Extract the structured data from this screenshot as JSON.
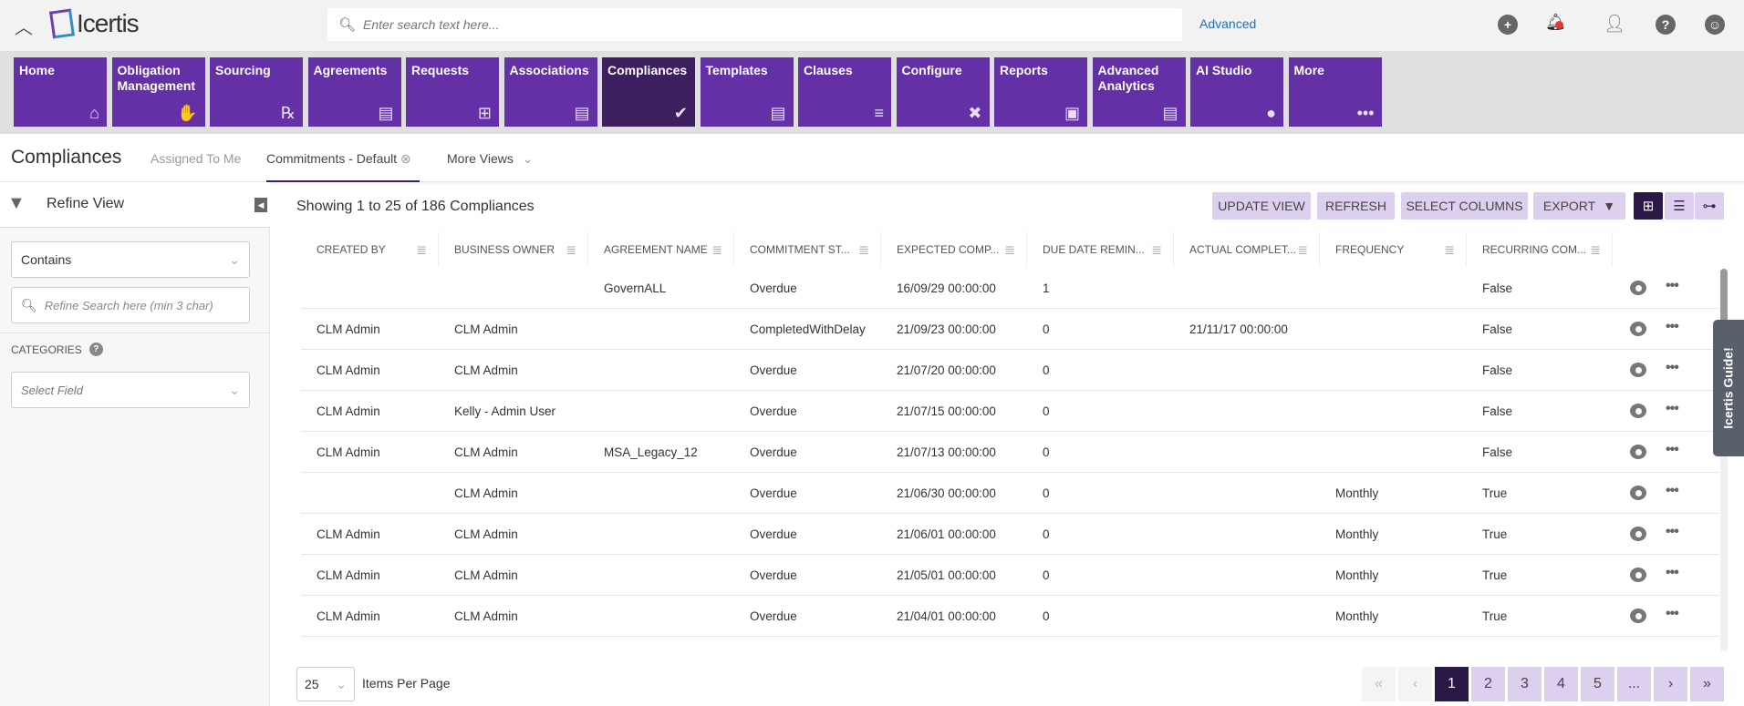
{
  "header": {
    "logo": "Icertis",
    "search_placeholder": "Enter search text here...",
    "advanced": "Advanced",
    "icons": [
      "plus-circle-icon",
      "bell-icon",
      "user-clock-icon",
      "help-icon",
      "user-icon"
    ],
    "notification_color": "#e53935"
  },
  "nav": {
    "tiles": [
      {
        "label": "Home",
        "icon": "home-icon",
        "glyph": "⌂"
      },
      {
        "label": "Obligation Management",
        "icon": "handshake-icon",
        "glyph": "✋"
      },
      {
        "label": "Sourcing",
        "icon": "rx-document-icon",
        "glyph": "℞"
      },
      {
        "label": "Agreements",
        "icon": "pdf-document-icon",
        "glyph": "▤"
      },
      {
        "label": "Requests",
        "icon": "document-plus-icon",
        "glyph": "⊞"
      },
      {
        "label": "Associations",
        "icon": "document-lines-icon",
        "glyph": "▤"
      },
      {
        "label": "Compliances",
        "icon": "double-check-icon",
        "glyph": "✔",
        "active": true
      },
      {
        "label": "Templates",
        "icon": "document-list-icon",
        "glyph": "▤"
      },
      {
        "label": "Clauses",
        "icon": "align-left-icon",
        "glyph": "≡"
      },
      {
        "label": "Configure",
        "icon": "tools-icon",
        "glyph": "✖"
      },
      {
        "label": "Reports",
        "icon": "clipboard-icon",
        "glyph": "▣"
      },
      {
        "label": "Advanced Analytics",
        "icon": "analytics-document-icon",
        "glyph": "▤"
      },
      {
        "label": "AI Studio",
        "icon": "lightbulb-icon",
        "glyph": "●"
      },
      {
        "label": "More",
        "icon": "ellipsis-icon",
        "glyph": "•••"
      }
    ],
    "active_color": "#3d1f5f",
    "tile_color": "#6330a5"
  },
  "subheader": {
    "title": "Compliances",
    "views": [
      "Assigned To Me",
      "Commitments - Default",
      "More Views"
    ]
  },
  "sidebar": {
    "title": "Refine View",
    "operator": "Contains",
    "search_placeholder": "Refine Search here (min 3 char)",
    "categories_label": "CATEGORIES",
    "field_placeholder": "Select Field"
  },
  "toolbar": {
    "summary": "Showing 1 to 25 of 186 Compliances",
    "update_view": "UPDATE VIEW",
    "refresh": "REFRESH",
    "select_columns": "SELECT COLUMNS",
    "export": "EXPORT"
  },
  "table": {
    "columns": [
      "CREATED BY",
      "BUSINESS OWNER",
      "AGREEMENT NAME",
      "COMMITMENT ST...",
      "EXPECTED COMP...",
      "DUE DATE REMIN...",
      "ACTUAL COMPLET...",
      "FREQUENCY",
      "RECURRING COM..."
    ],
    "rows": [
      [
        "",
        "",
        "GovernALL",
        "Overdue",
        "16/09/29 00:00:00",
        "1",
        "",
        "",
        "False"
      ],
      [
        "CLM Admin",
        "CLM Admin",
        "",
        "CompletedWithDelay",
        "21/09/23 00:00:00",
        "0",
        "21/11/17 00:00:00",
        "",
        "False"
      ],
      [
        "CLM Admin",
        "CLM Admin",
        "",
        "Overdue",
        "21/07/20 00:00:00",
        "0",
        "",
        "",
        "False"
      ],
      [
        "CLM Admin",
        "Kelly - Admin User",
        "",
        "Overdue",
        "21/07/15 00:00:00",
        "0",
        "",
        "",
        "False"
      ],
      [
        "CLM Admin",
        "CLM Admin",
        "MSA_Legacy_12",
        "Overdue",
        "21/07/13 00:00:00",
        "0",
        "",
        "",
        "False"
      ],
      [
        "",
        "CLM Admin",
        "",
        "Overdue",
        "21/06/30 00:00:00",
        "0",
        "",
        "Monthly",
        "True"
      ],
      [
        "CLM Admin",
        "CLM Admin",
        "",
        "Overdue",
        "21/06/01 00:00:00",
        "0",
        "",
        "Monthly",
        "True"
      ],
      [
        "CLM Admin",
        "CLM Admin",
        "",
        "Overdue",
        "21/05/01 00:00:00",
        "0",
        "",
        "Monthly",
        "True"
      ],
      [
        "CLM Admin",
        "CLM Admin",
        "",
        "Overdue",
        "21/04/01 00:00:00",
        "0",
        "",
        "Monthly",
        "True"
      ]
    ]
  },
  "guide": "Icertis Guide!",
  "footer": {
    "page_size": "25",
    "items_per_page": "Items Per Page",
    "pages": [
      "«",
      "‹",
      "1",
      "2",
      "3",
      "4",
      "5",
      "...",
      "›",
      "»"
    ],
    "current_page": "1"
  }
}
